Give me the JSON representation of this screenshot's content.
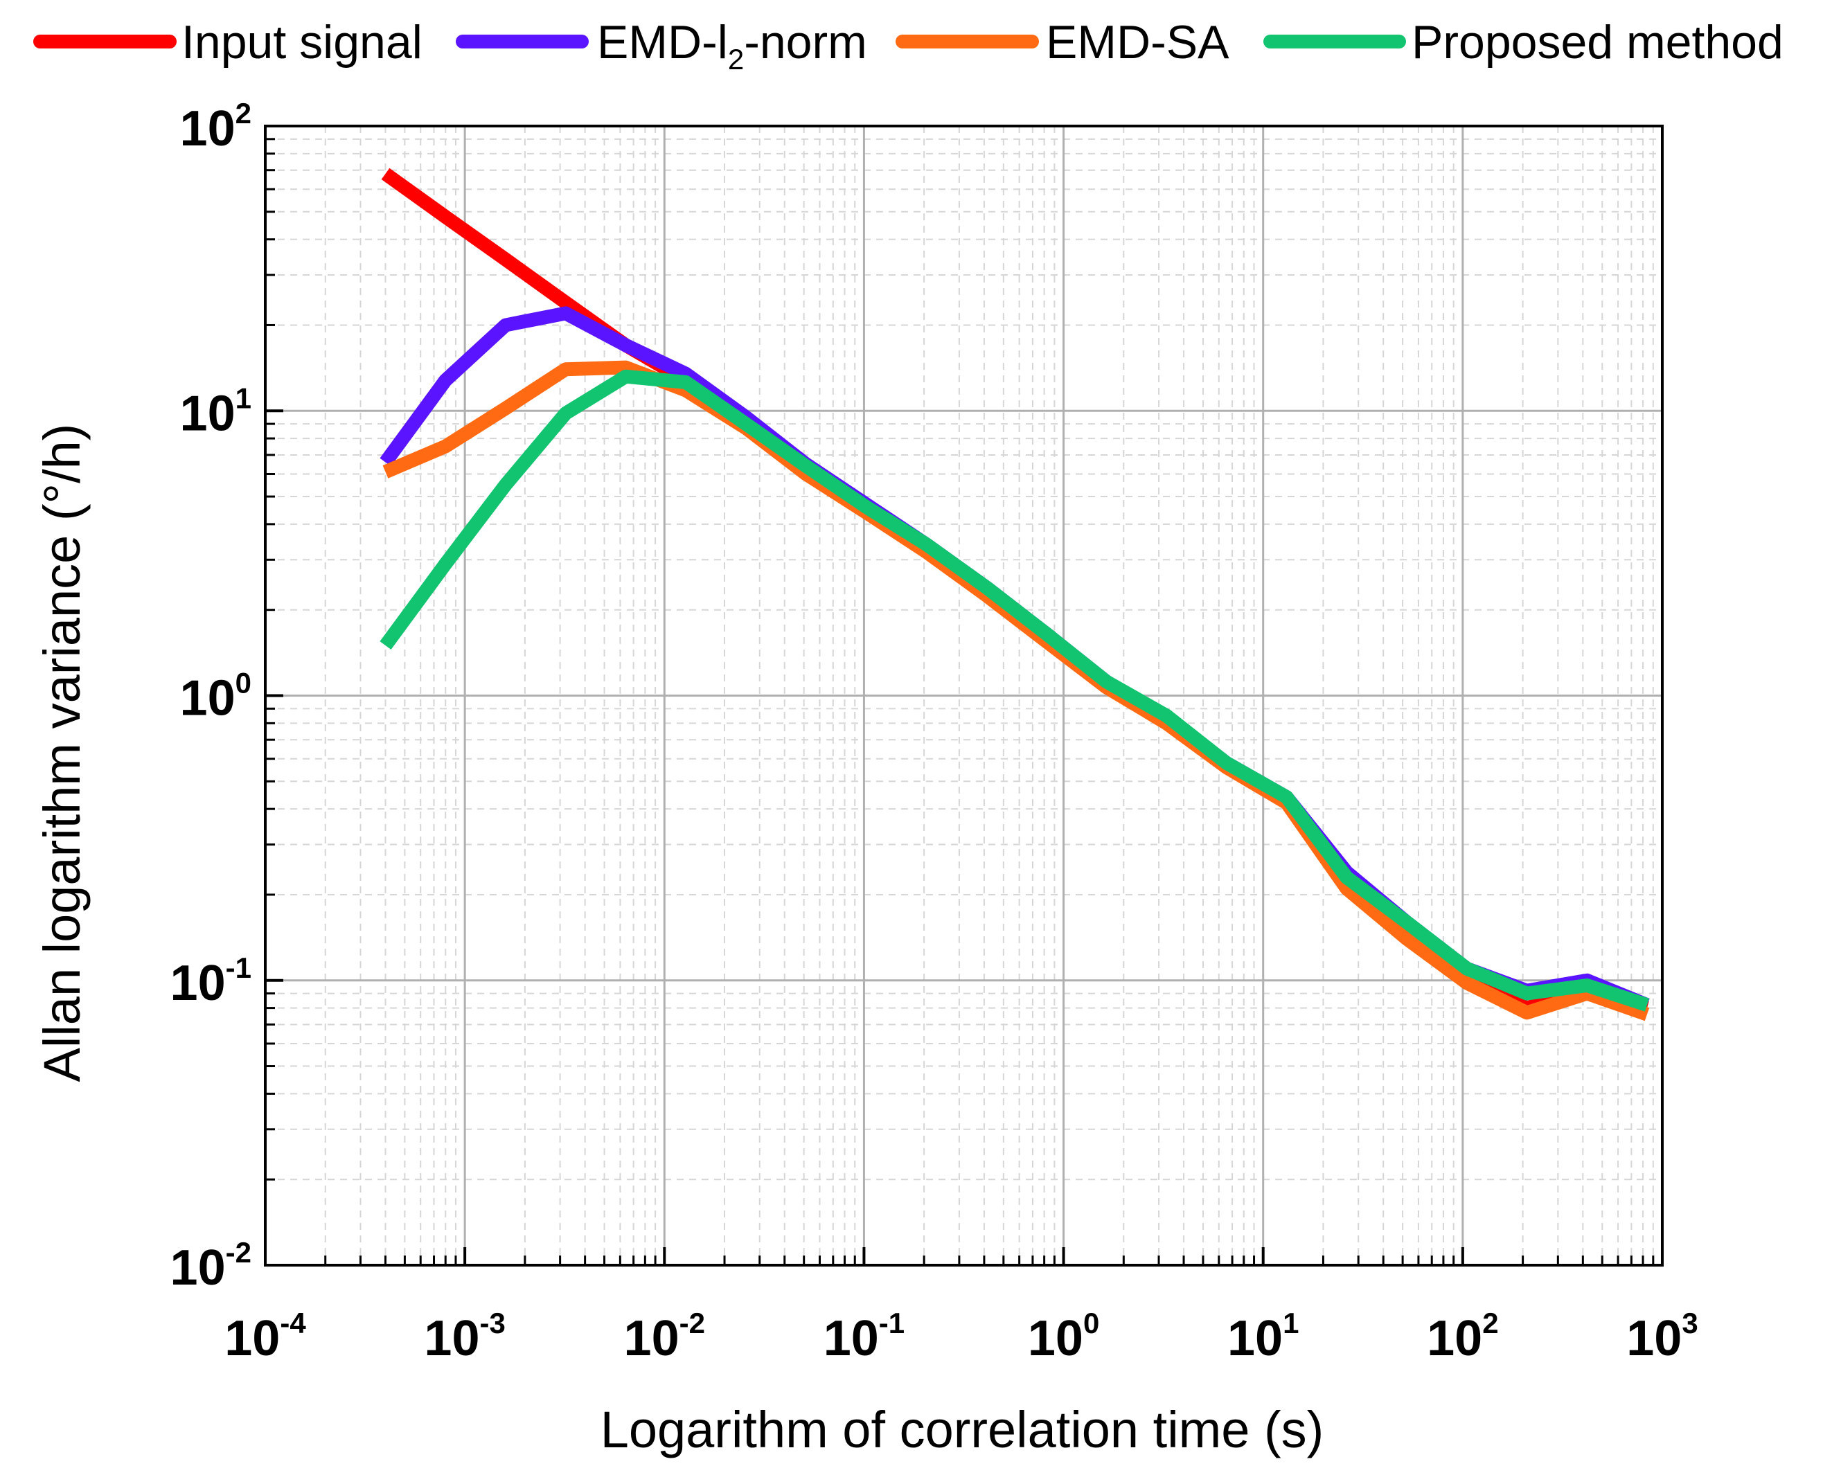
{
  "chart_data": {
    "type": "line",
    "title": "",
    "xlabel": "Logarithm of correlation time (s)",
    "ylabel": "Allan logarithm variance (°/h)",
    "xscale": "log",
    "yscale": "log",
    "xlim": [
      0.0001,
      1000
    ],
    "ylim": [
      0.01,
      100
    ],
    "grid": true,
    "legend_position": "top",
    "x_ticks": [
      {
        "base": "10",
        "exp": "-4"
      },
      {
        "base": "10",
        "exp": "-3"
      },
      {
        "base": "10",
        "exp": "-2"
      },
      {
        "base": "10",
        "exp": "-1"
      },
      {
        "base": "10",
        "exp": "0"
      },
      {
        "base": "10",
        "exp": "1"
      },
      {
        "base": "10",
        "exp": "2"
      },
      {
        "base": "10",
        "exp": "3"
      }
    ],
    "y_ticks": [
      {
        "base": "10",
        "exp": "-2"
      },
      {
        "base": "10",
        "exp": "-1"
      },
      {
        "base": "10",
        "exp": "0"
      },
      {
        "base": "10",
        "exp": "1"
      },
      {
        "base": "10",
        "exp": "2"
      }
    ],
    "series": [
      {
        "name": "Input signal",
        "color": "#ff0000",
        "x": [
          0.0004,
          0.0008,
          0.0016,
          0.0032,
          0.0064,
          0.0128,
          0.0256,
          0.0512,
          0.1024,
          0.2048,
          0.4096,
          0.8192,
          1.6384,
          3.2768,
          6.5536,
          13.1072,
          26.2144,
          52.4288,
          104.8576,
          209.7152,
          419.4304,
          838.8608
        ],
        "y": [
          68,
          48,
          34,
          24,
          17,
          12.8,
          9.0,
          6.2,
          4.5,
          3.3,
          2.3,
          1.6,
          1.1,
          0.82,
          0.57,
          0.43,
          0.22,
          0.15,
          0.1,
          0.08,
          0.092,
          0.08
        ]
      },
      {
        "name": "EMD-l2-norm",
        "name_base": "EMD-l",
        "name_sub": "2",
        "name_suffix": "-norm",
        "color": "#5a14ff",
        "x": [
          0.0004,
          0.0008,
          0.0016,
          0.0032,
          0.0064,
          0.0128,
          0.0256,
          0.0512,
          0.1024,
          0.2048,
          0.4096,
          0.8192,
          1.6384,
          3.2768,
          6.5536,
          13.1072,
          26.2144,
          52.4288,
          104.8576,
          209.7152,
          419.4304,
          838.8608
        ],
        "y": [
          6.6,
          12.8,
          20,
          22,
          17,
          13.5,
          9.5,
          6.5,
          4.7,
          3.4,
          2.4,
          1.65,
          1.12,
          0.84,
          0.58,
          0.44,
          0.24,
          0.16,
          0.11,
          0.092,
          0.1,
          0.082
        ]
      },
      {
        "name": "EMD-SA",
        "color": "#ff6a13",
        "x": [
          0.0004,
          0.0008,
          0.0016,
          0.0032,
          0.0064,
          0.0128,
          0.0256,
          0.0512,
          0.1024,
          0.2048,
          0.4096,
          0.8192,
          1.6384,
          3.2768,
          6.5536,
          13.1072,
          26.2144,
          52.4288,
          104.8576,
          209.7152,
          419.4304,
          838.8608
        ],
        "y": [
          6.1,
          7.5,
          10.2,
          14,
          14.2,
          11.8,
          8.7,
          6.0,
          4.4,
          3.2,
          2.25,
          1.55,
          1.07,
          0.8,
          0.56,
          0.42,
          0.21,
          0.14,
          0.098,
          0.077,
          0.09,
          0.076
        ]
      },
      {
        "name": "Proposed method",
        "color": "#12c46f",
        "x": [
          0.0004,
          0.0008,
          0.0016,
          0.0032,
          0.0064,
          0.0128,
          0.0256,
          0.0512,
          0.1024,
          0.2048,
          0.4096,
          0.8192,
          1.6384,
          3.2768,
          6.5536,
          13.1072,
          26.2144,
          52.4288,
          104.8576,
          209.7152,
          419.4304,
          838.8608
        ],
        "y": [
          1.5,
          2.9,
          5.5,
          9.8,
          13.2,
          12.6,
          9.0,
          6.4,
          4.6,
          3.4,
          2.4,
          1.65,
          1.12,
          0.85,
          0.58,
          0.44,
          0.23,
          0.16,
          0.11,
          0.09,
          0.096,
          0.082
        ]
      }
    ]
  }
}
